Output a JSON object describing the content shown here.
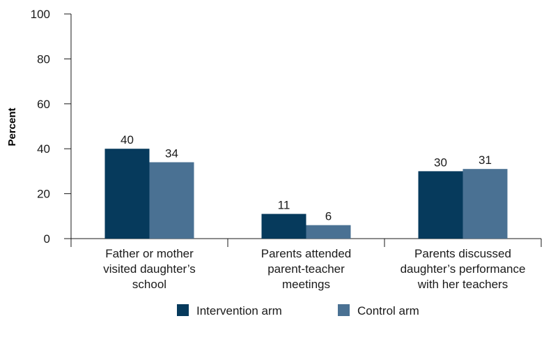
{
  "chart_data": {
    "type": "bar",
    "title": "",
    "xlabel": "",
    "ylabel": "Percent",
    "ylim": [
      0,
      100
    ],
    "yticks": [
      "0",
      "20",
      "40",
      "60",
      "80",
      "100"
    ],
    "grid": false,
    "legend_position": "bottom",
    "categories": [
      [
        "Father or mother",
        "visited daughter’s",
        "school"
      ],
      [
        "Parents attended",
        "parent-teacher",
        "meetings"
      ],
      [
        "Parents discussed",
        "daughter’s performance",
        "with her teachers"
      ]
    ],
    "series": [
      {
        "name": "Intervention arm",
        "color": "#063a5c",
        "values": [
          40,
          11,
          30
        ]
      },
      {
        "name": "Control arm",
        "color": "#4a7193",
        "values": [
          34,
          6,
          31
        ]
      }
    ]
  }
}
